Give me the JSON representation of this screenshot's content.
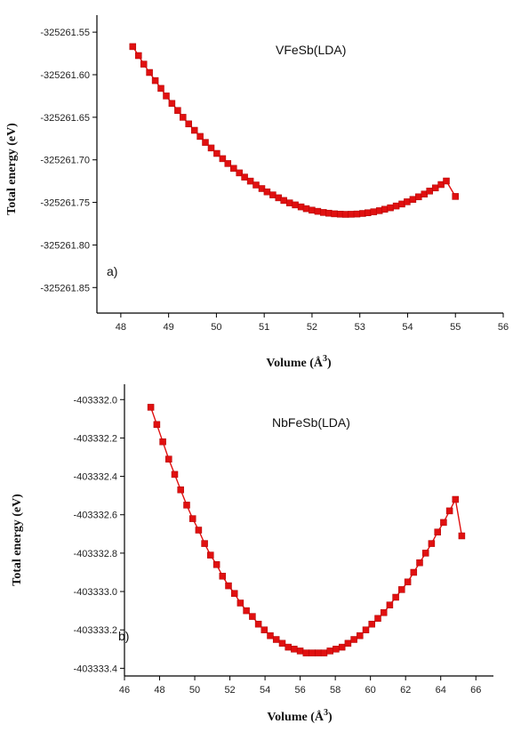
{
  "chart_data": [
    {
      "type": "line",
      "title": "VFeSb(LDA)",
      "panel_label": "a)",
      "xlabel": "Volume (Å",
      "xlabel_sup": "3",
      "xlabel_close": ")",
      "ylabel": "Total energy (eV)",
      "xlim": [
        47.5,
        56
      ],
      "ylim": [
        -325261.88,
        -325261.53
      ],
      "x_ticks": [
        "48",
        "49",
        "50",
        "51",
        "52",
        "53",
        "54",
        "55",
        "56"
      ],
      "y_ticks": [
        "-325261.55",
        "-325261.60",
        "-325261.65",
        "-325261.70",
        "-325261.75",
        "-325261.80",
        "-325261.85"
      ],
      "grid": false,
      "legend": "none",
      "color": "#e01010",
      "marker": "square",
      "series": [
        {
          "x": [
            48.25,
            48.37,
            48.48,
            48.6,
            48.72,
            48.84,
            48.95,
            49.07,
            49.19,
            49.3,
            49.42,
            49.54,
            49.66,
            49.77,
            49.89,
            50.01,
            50.13,
            50.24,
            50.36,
            50.48,
            50.59,
            50.71,
            50.83,
            50.95,
            51.06,
            51.18,
            51.3,
            51.41,
            51.53,
            51.65,
            51.77,
            51.88,
            52.0,
            52.12,
            52.24,
            52.35,
            52.47,
            52.59,
            52.7,
            52.82,
            52.94,
            53.06,
            53.17,
            53.29,
            53.41,
            53.52,
            53.64,
            53.76,
            53.88,
            53.99,
            54.11,
            54.23,
            54.35,
            54.46,
            54.58,
            54.7,
            54.81,
            55.0
          ],
          "y": [
            -325261.567,
            -325261.5775,
            -325261.5876,
            -325261.5974,
            -325261.6069,
            -325261.6161,
            -325261.625,
            -325261.6337,
            -325261.642,
            -325261.65,
            -325261.6578,
            -325261.6653,
            -325261.6725,
            -325261.6795,
            -325261.6861,
            -325261.6925,
            -325261.6986,
            -325261.7044,
            -325261.71,
            -325261.7153,
            -325261.7203,
            -325261.725,
            -325261.7295,
            -325261.7337,
            -325261.7376,
            -325261.7412,
            -325261.7446,
            -325261.7477,
            -325261.7505,
            -325261.753,
            -325261.7553,
            -325261.7573,
            -325261.7591,
            -325261.7605,
            -325261.7618,
            -325261.7627,
            -325261.7634,
            -325261.7638,
            -325261.764,
            -325261.7639,
            -325261.7636,
            -325261.763,
            -325261.7621,
            -325261.761,
            -325261.7597,
            -325261.7581,
            -325261.7563,
            -325261.7542,
            -325261.7519,
            -325261.7493,
            -325261.7465,
            -325261.7435,
            -325261.7402,
            -325261.7367,
            -325261.733,
            -325261.729,
            -325261.7248,
            -325261.743
          ]
        }
      ]
    },
    {
      "type": "line",
      "title": "NbFeSb(LDA)",
      "panel_label": "b)",
      "xlabel": "Volume (Å",
      "xlabel_sup": "3",
      "xlabel_close": ")",
      "ylabel": "Total energy (eV)",
      "xlim": [
        46,
        67
      ],
      "ylim": [
        -403333.44,
        -403331.92
      ],
      "x_ticks": [
        "46",
        "48",
        "50",
        "52",
        "54",
        "56",
        "58",
        "60",
        "62",
        "64",
        "66"
      ],
      "y_ticks": [
        "-403332.0",
        "-403332.2",
        "-403332.4",
        "-403332.6",
        "-403332.8",
        "-403333.0",
        "-403333.2",
        "-403333.4"
      ],
      "grid": false,
      "legend": "none",
      "color": "#e01010",
      "marker": "square",
      "series": [
        {
          "x": [
            47.5,
            47.84,
            48.18,
            48.52,
            48.86,
            49.2,
            49.54,
            49.88,
            50.22,
            50.56,
            50.9,
            51.24,
            51.58,
            51.92,
            52.26,
            52.6,
            52.94,
            53.28,
            53.62,
            53.96,
            54.3,
            54.64,
            54.98,
            55.32,
            55.66,
            56.0,
            56.34,
            56.68,
            57.02,
            57.36,
            57.7,
            58.04,
            58.38,
            58.72,
            59.06,
            59.4,
            59.74,
            60.08,
            60.42,
            60.76,
            61.1,
            61.44,
            61.78,
            62.12,
            62.46,
            62.8,
            63.14,
            63.48,
            63.82,
            64.16,
            64.5,
            64.84,
            65.2
          ],
          "y": [
            -403332.04,
            -403332.13,
            -403332.22,
            -403332.31,
            -403332.39,
            -403332.47,
            -403332.55,
            -403332.62,
            -403332.68,
            -403332.75,
            -403332.81,
            -403332.86,
            -403332.92,
            -403332.97,
            -403333.01,
            -403333.06,
            -403333.1,
            -403333.13,
            -403333.17,
            -403333.2,
            -403333.23,
            -403333.25,
            -403333.27,
            -403333.29,
            -403333.3,
            -403333.31,
            -403333.32,
            -403333.32,
            -403333.32,
            -403333.32,
            -403333.31,
            -403333.3,
            -403333.29,
            -403333.27,
            -403333.25,
            -403333.23,
            -403333.2,
            -403333.17,
            -403333.14,
            -403333.11,
            -403333.07,
            -403333.03,
            -403332.99,
            -403332.95,
            -403332.9,
            -403332.85,
            -403332.8,
            -403332.75,
            -403332.69,
            -403332.64,
            -403332.58,
            -403332.52,
            -403332.71
          ]
        }
      ]
    }
  ]
}
